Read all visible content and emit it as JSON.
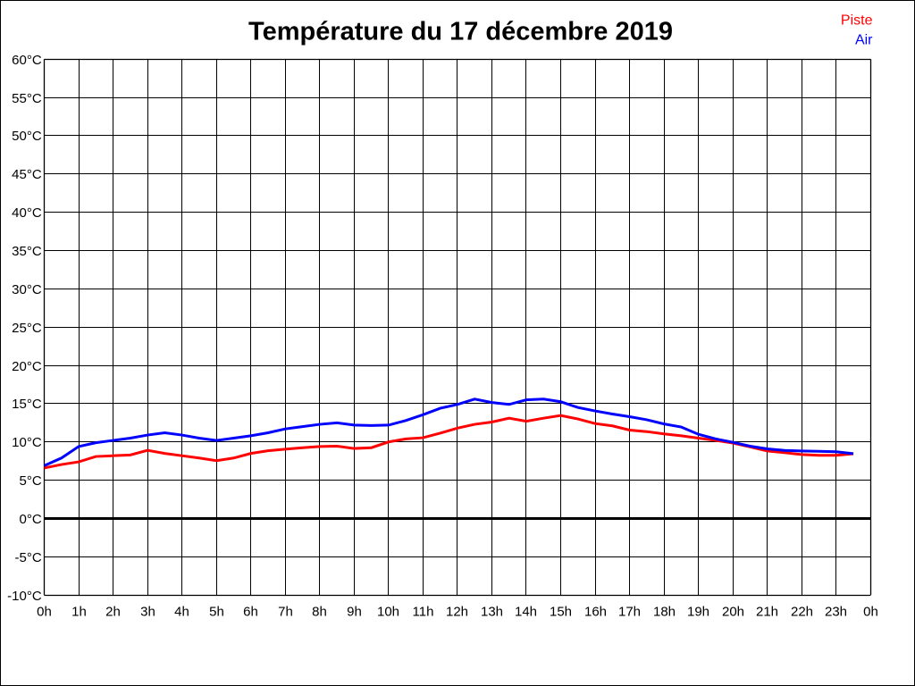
{
  "chart_data": {
    "type": "line",
    "title": "Température du 17 décembre 2019",
    "xlabel": "",
    "ylabel": "",
    "xlim": [
      0,
      24
    ],
    "ylim": [
      -10,
      60
    ],
    "y_tick_step": 5,
    "grid": true,
    "zero_line_value": 0,
    "legend_position": "top-right",
    "x_tick_labels": [
      "0h",
      "1h",
      "2h",
      "3h",
      "4h",
      "5h",
      "6h",
      "7h",
      "8h",
      "9h",
      "10h",
      "11h",
      "12h",
      "13h",
      "14h",
      "15h",
      "16h",
      "17h",
      "18h",
      "19h",
      "20h",
      "21h",
      "22h",
      "23h",
      "0h"
    ],
    "y_tick_labels": [
      "60°C",
      "55°C",
      "50°C",
      "45°C",
      "40°C",
      "35°C",
      "30°C",
      "25°C",
      "20°C",
      "15°C",
      "10°C",
      "5°C",
      "0°C",
      "-5°C",
      "-10°C"
    ],
    "x": [
      0,
      0.5,
      1,
      1.5,
      2,
      2.5,
      3,
      3.5,
      4,
      4.5,
      5,
      5.5,
      6,
      6.5,
      7,
      7.5,
      8,
      8.5,
      9,
      9.5,
      10,
      10.5,
      11,
      11.5,
      12,
      12.5,
      13,
      13.5,
      14,
      14.5,
      15,
      15.5,
      16,
      16.5,
      17,
      17.5,
      18,
      18.5,
      19,
      19.5,
      20,
      20.5,
      21,
      21.5,
      22,
      22.5,
      23,
      23.5
    ],
    "series": [
      {
        "name": "Piste",
        "color": "#ff0000",
        "values": [
          6.6,
          7.05,
          7.4,
          8.1,
          8.2,
          8.3,
          8.9,
          8.5,
          8.2,
          7.9,
          7.55,
          7.9,
          8.5,
          8.85,
          9.05,
          9.25,
          9.4,
          9.45,
          9.15,
          9.25,
          10.0,
          10.4,
          10.55,
          11.15,
          11.8,
          12.3,
          12.6,
          13.1,
          12.7,
          13.1,
          13.45,
          13.0,
          12.4,
          12.1,
          11.55,
          11.35,
          11.05,
          10.8,
          10.5,
          10.2,
          9.85,
          9.35,
          8.82,
          8.6,
          8.35,
          8.25,
          8.25,
          8.45
        ]
      },
      {
        "name": "Air",
        "color": "#0000ff",
        "values": [
          6.9,
          7.9,
          9.4,
          9.9,
          10.2,
          10.5,
          10.9,
          11.2,
          10.9,
          10.5,
          10.2,
          10.5,
          10.8,
          11.2,
          11.7,
          12.0,
          12.3,
          12.5,
          12.2,
          12.15,
          12.2,
          12.8,
          13.55,
          14.4,
          14.9,
          15.6,
          15.15,
          14.9,
          15.5,
          15.6,
          15.25,
          14.5,
          14.05,
          13.65,
          13.3,
          12.9,
          12.35,
          11.95,
          11.0,
          10.4,
          9.95,
          9.45,
          9.1,
          8.9,
          8.82,
          8.78,
          8.72,
          8.47
        ]
      }
    ],
    "colors": {
      "grid": "#000000",
      "zero_line": "#000000",
      "background": "#ffffff",
      "border": "#000000"
    }
  }
}
